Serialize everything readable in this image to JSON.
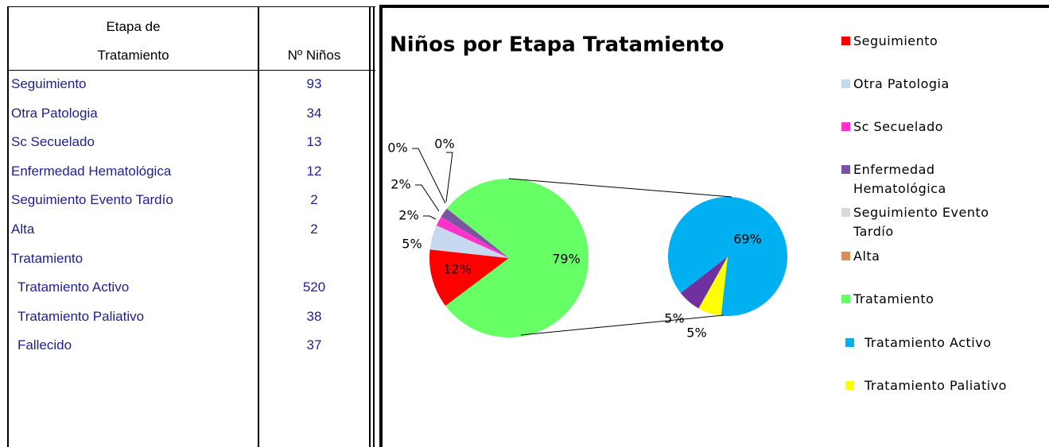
{
  "table": {
    "header": {
      "stage": [
        "Etapa de",
        "Tratamiento"
      ],
      "count": "Nº Niños"
    },
    "rows": [
      {
        "label": "Seguimiento",
        "count": 93
      },
      {
        "label": "Otra Patologia",
        "count": 34
      },
      {
        "label": "Sc Secuelado",
        "count": 13
      },
      {
        "label": "Enfermedad Hematológica",
        "count": 12
      },
      {
        "label": "Seguimiento Evento Tardío",
        "count": 2
      },
      {
        "label": "Alta",
        "count": 2
      },
      {
        "label": "Tratamiento",
        "children": [
          {
            "label": "Tratamiento Activo",
            "count": 520
          },
          {
            "label": "Tratamiento Paliativo",
            "count": 38
          },
          {
            "label": "Fallecido",
            "count": 37
          }
        ]
      }
    ]
  },
  "chart_data": {
    "type": "pie-of-pie",
    "title": "Niños por Etapa Tratamiento",
    "categories": [
      "Seguimiento",
      "Otra Patologia",
      "Sc Secuelado",
      "Enfermedad Hematológica",
      "Seguimiento Evento Tardío",
      "Alta",
      "Tratamiento"
    ],
    "values": [
      12,
      5,
      2,
      2,
      0,
      0,
      79
    ],
    "value_labels": [
      "12%",
      "5%",
      "2%",
      "2%",
      "0%",
      "0%",
      "79%"
    ],
    "colors": [
      "#ff0000",
      "#c6d9f1",
      "#ff33cc",
      "#7a54a0",
      "#d9d9d9",
      "#d99058",
      "#66ff66"
    ],
    "sub_categories": [
      "Tratamiento Activo",
      "Tratamiento Paliativo",
      null
    ],
    "sub_values": [
      69,
      5,
      5
    ],
    "sub_value_labels": [
      "69%",
      "5%",
      "5%"
    ],
    "sub_colors": [
      "#00b0f0",
      "#ffff00",
      "#7030a0"
    ],
    "legend": "right"
  }
}
